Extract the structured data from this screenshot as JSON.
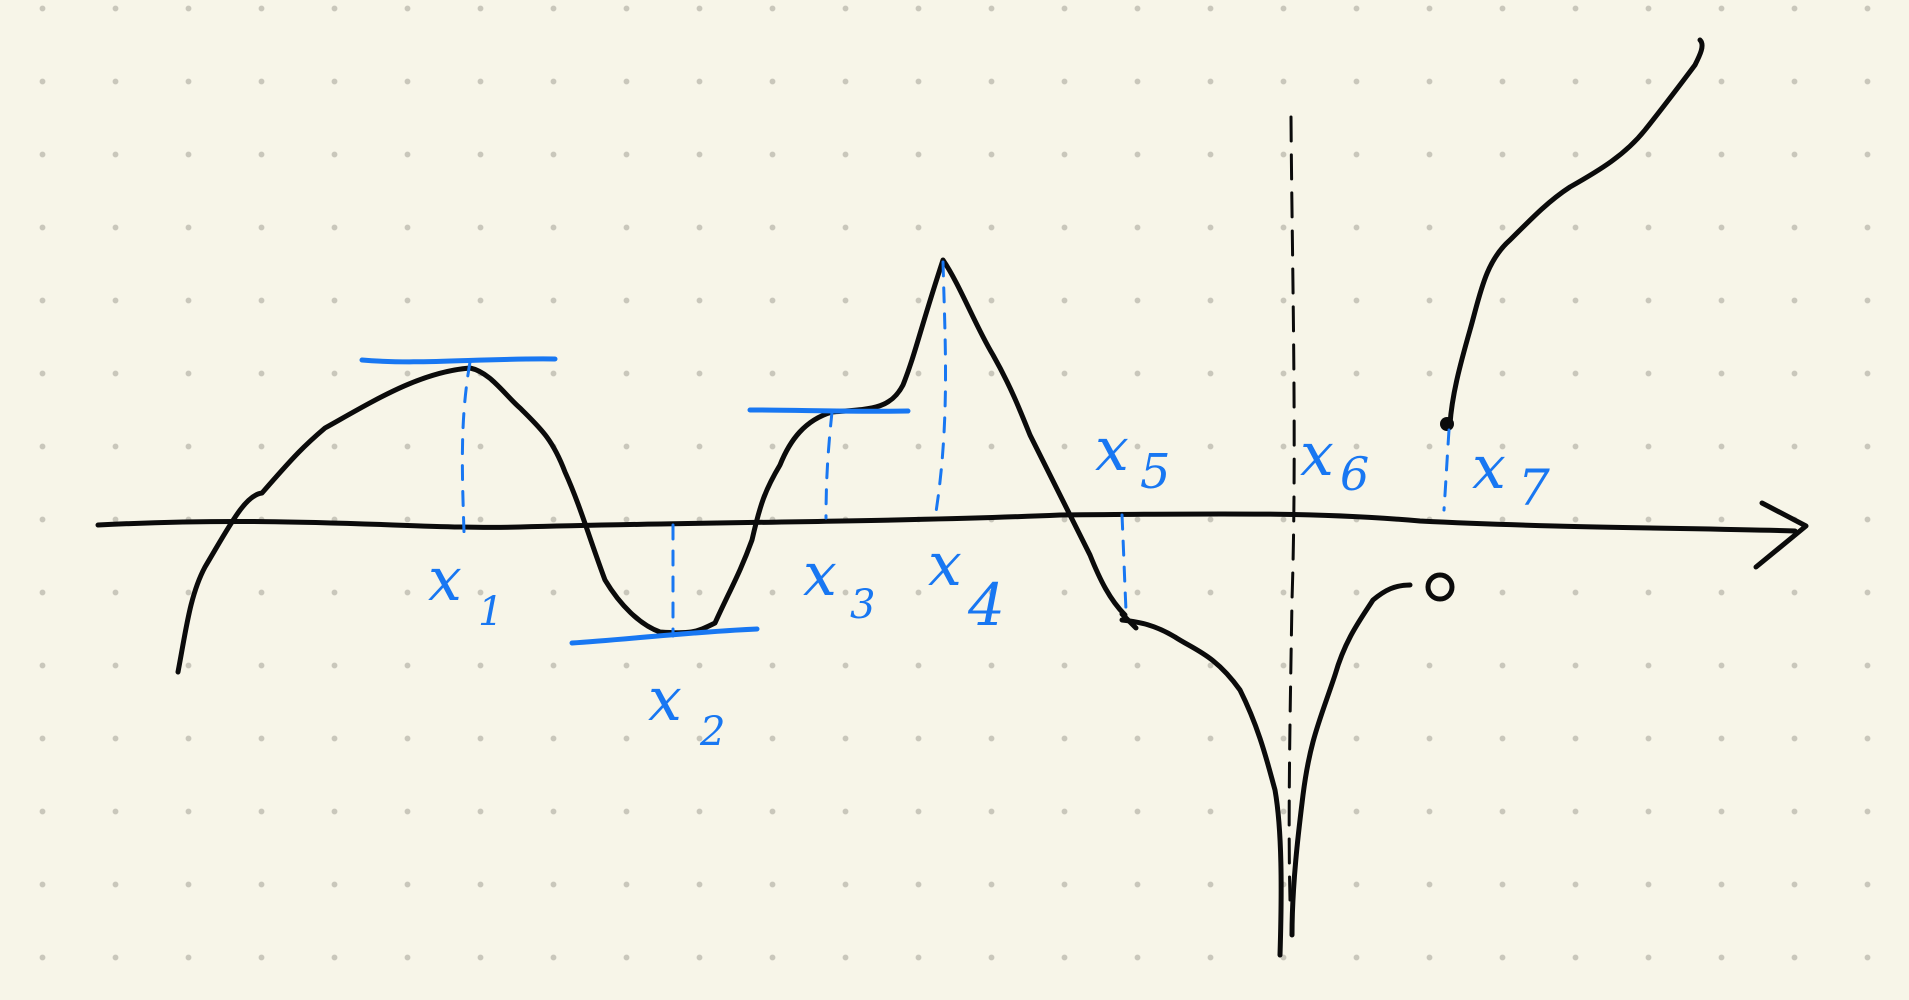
{
  "diagram": {
    "ink_color": "#0b0b0b",
    "annotation_color": "#1877f2",
    "background_color": "#f7f5e8",
    "points": [
      {
        "id": "x1",
        "base": "x",
        "sub": "1"
      },
      {
        "id": "x2",
        "base": "x",
        "sub": "2"
      },
      {
        "id": "x3",
        "base": "x",
        "sub": "3"
      },
      {
        "id": "x4",
        "base": "x",
        "sub": "4"
      },
      {
        "id": "x5",
        "base": "x",
        "sub": "5"
      },
      {
        "id": "x6",
        "base": "x",
        "sub": "6"
      },
      {
        "id": "x7",
        "base": "x",
        "sub": "7"
      }
    ]
  }
}
